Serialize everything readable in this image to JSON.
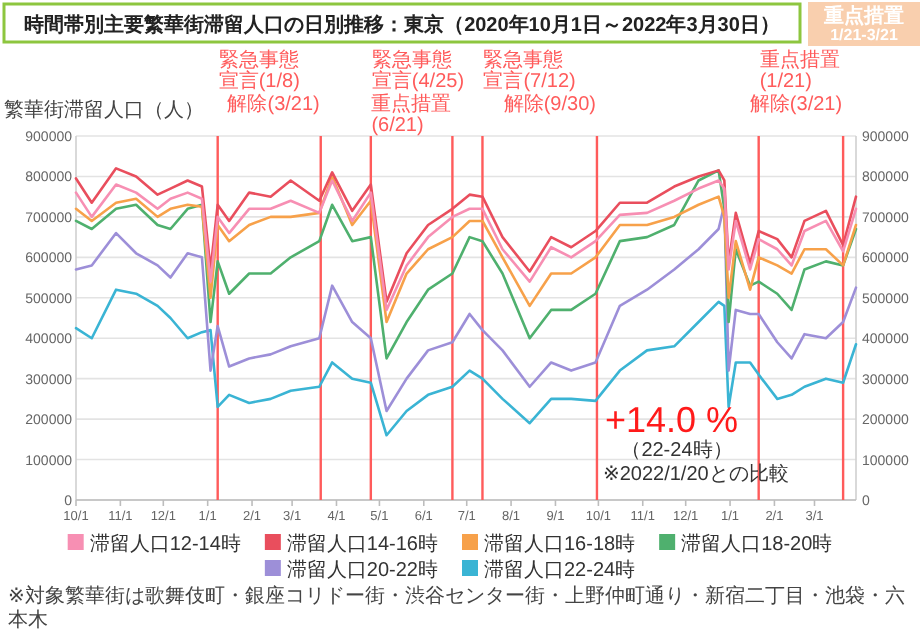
{
  "chart_data": {
    "type": "line",
    "title": "時間帯別主要繁華街滞留人口の日別推移：東京（2020年10月1日～2022年3月30日）",
    "ylabel": "繁華街滞留人口（人）",
    "x": [
      "2020-10-01",
      "2020-10-12",
      "2020-10-29",
      "2020-11-12",
      "2020-11-27",
      "2020-12-06",
      "2020-12-18",
      "2020-12-28",
      "2021-01-03",
      "2021-01-08",
      "2021-01-16",
      "2021-01-30",
      "2021-02-14",
      "2021-02-28",
      "2021-03-20",
      "2021-03-29",
      "2021-04-12",
      "2021-04-25",
      "2021-05-06",
      "2021-05-20",
      "2021-06-04",
      "2021-06-21",
      "2021-07-03",
      "2021-07-12",
      "2021-07-26",
      "2021-08-14",
      "2021-08-29",
      "2021-09-12",
      "2021-09-29",
      "2021-10-16",
      "2021-11-04",
      "2021-11-23",
      "2021-12-10",
      "2021-12-24",
      "2021-12-28",
      "2021-12-31",
      "2022-01-05",
      "2022-01-15",
      "2022-01-21",
      "2022-02-03",
      "2022-02-13",
      "2022-02-22",
      "2022-03-09",
      "2022-03-21",
      "2022-03-30"
    ],
    "series": [
      {
        "name": "滞留人口12-14時",
        "color": "#f78fb3",
        "values": [
          760000,
          700000,
          780000,
          760000,
          720000,
          745000,
          760000,
          745000,
          540000,
          700000,
          660000,
          720000,
          720000,
          740000,
          710000,
          790000,
          690000,
          760000,
          470000,
          580000,
          650000,
          700000,
          720000,
          720000,
          620000,
          540000,
          625000,
          600000,
          640000,
          705000,
          710000,
          740000,
          770000,
          790000,
          770000,
          570000,
          690000,
          570000,
          645000,
          620000,
          580000,
          665000,
          690000,
          615000,
          720000
        ]
      },
      {
        "name": "滞留人口14-16時",
        "color": "#e94e5d",
        "values": [
          795000,
          735000,
          820000,
          800000,
          755000,
          770000,
          790000,
          775000,
          570000,
          730000,
          690000,
          760000,
          750000,
          790000,
          740000,
          810000,
          715000,
          780000,
          490000,
          610000,
          680000,
          720000,
          755000,
          750000,
          650000,
          565000,
          650000,
          625000,
          665000,
          735000,
          735000,
          775000,
          800000,
          815000,
          790000,
          585000,
          710000,
          585000,
          665000,
          645000,
          600000,
          690000,
          715000,
          630000,
          750000
        ]
      },
      {
        "name": "滞留人口16-18時",
        "color": "#f7a14a",
        "values": [
          720000,
          690000,
          735000,
          745000,
          700000,
          720000,
          730000,
          725000,
          500000,
          680000,
          640000,
          680000,
          700000,
          700000,
          710000,
          800000,
          680000,
          740000,
          440000,
          560000,
          620000,
          650000,
          690000,
          690000,
          600000,
          480000,
          560000,
          560000,
          600000,
          680000,
          680000,
          700000,
          730000,
          750000,
          700000,
          500000,
          640000,
          520000,
          600000,
          580000,
          560000,
          620000,
          620000,
          580000,
          680000
        ]
      },
      {
        "name": "滞留人口18-20時",
        "color": "#4fb06e",
        "values": [
          690000,
          670000,
          720000,
          730000,
          680000,
          670000,
          720000,
          730000,
          440000,
          590000,
          510000,
          560000,
          560000,
          600000,
          640000,
          730000,
          640000,
          650000,
          350000,
          440000,
          520000,
          560000,
          650000,
          640000,
          560000,
          400000,
          470000,
          470000,
          510000,
          640000,
          650000,
          680000,
          790000,
          815000,
          720000,
          440000,
          620000,
          530000,
          540000,
          510000,
          470000,
          570000,
          590000,
          580000,
          670000
        ]
      },
      {
        "name": "滞留人口20-22時",
        "color": "#9d8fd8",
        "values": [
          570000,
          580000,
          660000,
          610000,
          580000,
          550000,
          610000,
          600000,
          320000,
          430000,
          330000,
          350000,
          360000,
          380000,
          400000,
          530000,
          440000,
          400000,
          220000,
          300000,
          370000,
          390000,
          460000,
          420000,
          370000,
          280000,
          340000,
          320000,
          340000,
          480000,
          520000,
          570000,
          620000,
          670000,
          730000,
          320000,
          470000,
          460000,
          460000,
          390000,
          350000,
          410000,
          400000,
          440000,
          525000
        ]
      },
      {
        "name": "滞留人口22-24時",
        "color": "#3ab4d4",
        "values": [
          425000,
          400000,
          520000,
          510000,
          480000,
          450000,
          400000,
          415000,
          420000,
          230000,
          260000,
          240000,
          250000,
          270000,
          280000,
          340000,
          300000,
          290000,
          160000,
          220000,
          260000,
          280000,
          320000,
          300000,
          250000,
          190000,
          250000,
          250000,
          245000,
          320000,
          370000,
          380000,
          440000,
          490000,
          480000,
          230000,
          340000,
          340000,
          310000,
          250000,
          260000,
          280000,
          300000,
          290000,
          385000
        ]
      }
    ],
    "xlim": [
      "2020-10-01",
      "2022-03-30"
    ],
    "ylim": [
      0,
      900000
    ],
    "yticks": [
      0,
      100000,
      200000,
      300000,
      400000,
      500000,
      600000,
      700000,
      800000,
      900000
    ],
    "y2lim": [
      0,
      900000
    ],
    "y2ticks": [
      0,
      100000,
      200000,
      300000,
      400000,
      500000,
      600000,
      700000,
      800000,
      900000
    ],
    "xticks": [
      {
        "value": "2020-10-01",
        "label": "10/1"
      },
      {
        "value": "2020-11-01",
        "label": "11/1"
      },
      {
        "value": "2020-12-01",
        "label": "12/1"
      },
      {
        "value": "2021-01-01",
        "label": "1/1"
      },
      {
        "value": "2021-02-01",
        "label": "2/1"
      },
      {
        "value": "2021-03-01",
        "label": "3/1"
      },
      {
        "value": "2021-04-01",
        "label": "4/1"
      },
      {
        "value": "2021-05-01",
        "label": "5/1"
      },
      {
        "value": "2021-06-01",
        "label": "6/1"
      },
      {
        "value": "2021-07-01",
        "label": "7/1"
      },
      {
        "value": "2021-08-01",
        "label": "8/1"
      },
      {
        "value": "2021-09-01",
        "label": "9/1"
      },
      {
        "value": "2021-10-01",
        "label": "10/1"
      },
      {
        "value": "2021-11-01",
        "label": "11/1"
      },
      {
        "value": "2021-12-01",
        "label": "12/1"
      },
      {
        "value": "2022-01-01",
        "label": "1/1"
      },
      {
        "value": "2022-02-01",
        "label": "2/1"
      },
      {
        "value": "2022-03-01",
        "label": "3/1"
      }
    ],
    "grid": "y",
    "legend": "bottom",
    "ref_lines": [
      {
        "axis": "x",
        "value": "2021-01-08",
        "label": "緊急事態宣言(1/8)",
        "color": "#ff5b5b"
      },
      {
        "axis": "x",
        "value": "2021-03-21",
        "label": "解除(3/21)",
        "color": "#ff5b5b"
      },
      {
        "axis": "x",
        "value": "2021-04-25",
        "label": "緊急事態宣言(4/25)",
        "color": "#ff5b5b"
      },
      {
        "axis": "x",
        "value": "2021-06-21",
        "label": "重点措置(6/21)",
        "color": "#ff5b5b"
      },
      {
        "axis": "x",
        "value": "2021-07-12",
        "label": "緊急事態宣言(7/12)",
        "color": "#ff5b5b"
      },
      {
        "axis": "x",
        "value": "2021-09-30",
        "label": "解除(9/30)",
        "color": "#ff5b5b"
      },
      {
        "axis": "x",
        "value": "2022-01-21",
        "label": "重点措置(1/21)",
        "color": "#ff5b5b"
      },
      {
        "axis": "x",
        "value": "2022-03-21",
        "label": "解除(3/21)",
        "color": "#ff5b5b"
      }
    ],
    "annotations": [
      "重点措置\n1/21-3/21",
      "+14.0 %",
      "（22-24時）",
      "※2022/1/20との比較",
      "※対象繁華街は歌舞伎町・銀座コリドー街・渋谷センター街・上野仲町通り・新宿二丁目・池袋・六本木"
    ]
  }
}
